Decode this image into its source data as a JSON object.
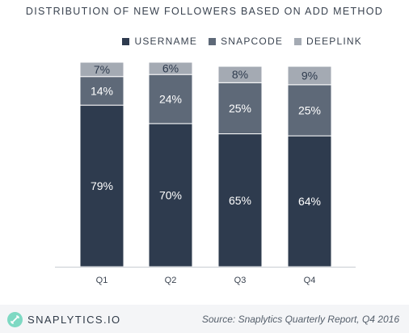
{
  "chart_data": {
    "type": "bar",
    "stacked": true,
    "title": "DISTRIBUTION OF NEW FOLLOWERS BASED ON ADD METHOD",
    "categories": [
      "Q1",
      "Q2",
      "Q3",
      "Q4"
    ],
    "series": [
      {
        "name": "USERNAME",
        "values": [
          79,
          70,
          65,
          64
        ],
        "color": "#2e3b4e"
      },
      {
        "name": "SNAPCODE",
        "values": [
          14,
          24,
          25,
          25
        ],
        "color": "#5e6978"
      },
      {
        "name": "DEEPLINK",
        "values": [
          7,
          6,
          8,
          9
        ],
        "color": "#a4aab3"
      }
    ],
    "ylim": [
      0,
      100
    ],
    "legend": "top-right",
    "grid": false,
    "value_label_suffix": "%"
  },
  "footer": {
    "brand": "SNAPLYTICS.IO",
    "source": "Source: Snaplytics Quarterly Report, Q4 2016",
    "logo_icon": "link-icon"
  }
}
